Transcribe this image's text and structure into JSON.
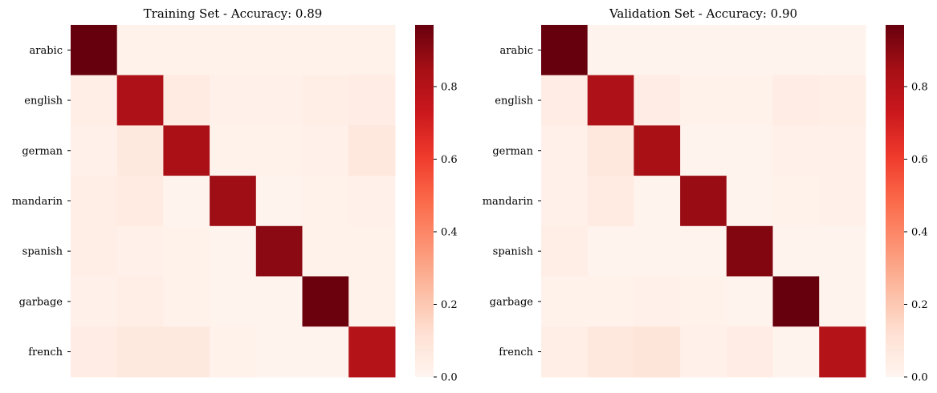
{
  "chart_data": [
    {
      "type": "heatmap",
      "title": "Training Set - Accuracy: 0.89",
      "xlabel": "",
      "ylabel": "",
      "categories": [
        "arabic",
        "english",
        "german",
        "mandarin",
        "spanish",
        "garbage",
        "french"
      ],
      "show_x_tick_labels": false,
      "matrix": [
        [
          0.97,
          0.02,
          0.02,
          0.02,
          0.02,
          0.02,
          0.02
        ],
        [
          0.04,
          0.82,
          0.06,
          0.03,
          0.03,
          0.04,
          0.05
        ],
        [
          0.03,
          0.07,
          0.83,
          0.02,
          0.02,
          0.03,
          0.08
        ],
        [
          0.04,
          0.06,
          0.01,
          0.86,
          0.01,
          0.02,
          0.03
        ],
        [
          0.04,
          0.03,
          0.02,
          0.01,
          0.9,
          0.02,
          0.02
        ],
        [
          0.03,
          0.04,
          0.02,
          0.01,
          0.01,
          0.96,
          0.02
        ],
        [
          0.05,
          0.07,
          0.07,
          0.02,
          0.01,
          0.01,
          0.8
        ]
      ],
      "colorbar": {
        "min": 0.0,
        "max": 0.97,
        "ticks": [
          0.0,
          0.2,
          0.4,
          0.6,
          0.8
        ],
        "tick_labels": [
          "0.0",
          "0.2",
          "0.4",
          "0.6",
          "0.8"
        ]
      },
      "colormap": "Reds"
    },
    {
      "type": "heatmap",
      "title": "Validation Set - Accuracy: 0.90",
      "xlabel": "",
      "ylabel": "",
      "categories": [
        "arabic",
        "english",
        "german",
        "mandarin",
        "spanish",
        "garbage",
        "french"
      ],
      "show_x_tick_labels": false,
      "matrix": [
        [
          0.97,
          0.01,
          0.01,
          0.01,
          0.01,
          0.01,
          0.01
        ],
        [
          0.05,
          0.82,
          0.05,
          0.02,
          0.02,
          0.05,
          0.04
        ],
        [
          0.03,
          0.08,
          0.84,
          0.01,
          0.01,
          0.03,
          0.03
        ],
        [
          0.03,
          0.06,
          0.01,
          0.87,
          0.01,
          0.02,
          0.03
        ],
        [
          0.04,
          0.01,
          0.01,
          0.01,
          0.92,
          0.01,
          0.01
        ],
        [
          0.02,
          0.02,
          0.03,
          0.02,
          0.01,
          0.97,
          0.01
        ],
        [
          0.04,
          0.08,
          0.09,
          0.03,
          0.05,
          0.01,
          0.8
        ]
      ],
      "colorbar": {
        "min": 0.0,
        "max": 0.97,
        "ticks": [
          0.0,
          0.2,
          0.4,
          0.6,
          0.8
        ],
        "tick_labels": [
          "0.0",
          "0.2",
          "0.4",
          "0.6",
          "0.8"
        ]
      },
      "colormap": "Reds"
    }
  ]
}
